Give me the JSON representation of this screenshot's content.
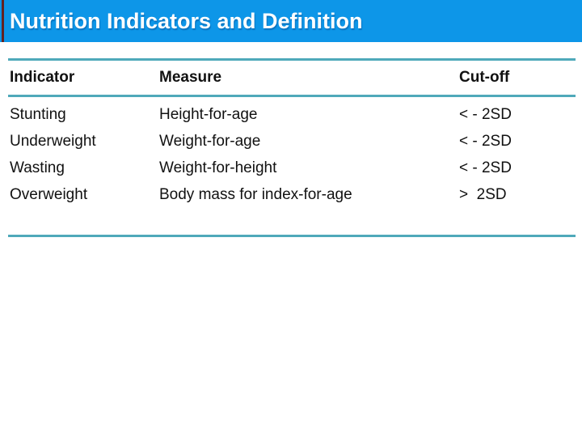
{
  "slide": {
    "title": "Nutrition Indicators and Definition"
  },
  "colors": {
    "title_bar_bg": "#0d96e8",
    "title_text": "#ffffff",
    "accent_stripe": "#632222",
    "table_rule": "#4fa9ba",
    "body_text": "#111111"
  },
  "table": {
    "columns": [
      "Indicator",
      "Measure",
      "Cut-off"
    ],
    "rows": [
      {
        "indicator": "Stunting",
        "measure": "Height-for-age",
        "cutoff": "< - 2SD"
      },
      {
        "indicator": "Underweight",
        "measure": "Weight-for-age",
        "cutoff": "< - 2SD"
      },
      {
        "indicator": "Wasting",
        "measure": "Weight-for-height",
        "cutoff": "< - 2SD"
      },
      {
        "indicator": "Overweight",
        "measure": "Body mass for index-for-age",
        "cutoff": ">  2SD"
      }
    ]
  }
}
